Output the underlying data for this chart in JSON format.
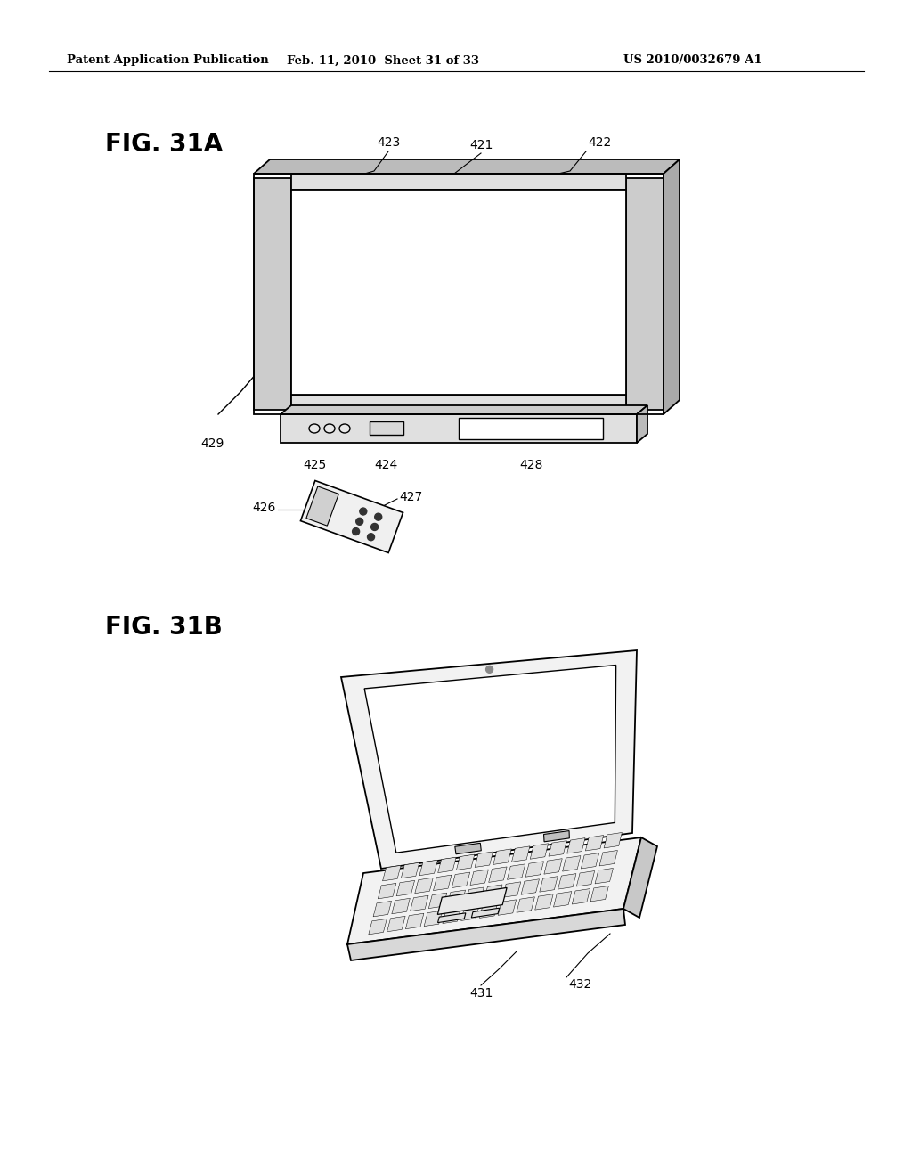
{
  "bg_color": "#ffffff",
  "header_left": "Patent Application Publication",
  "header_mid": "Feb. 11, 2010  Sheet 31 of 33",
  "header_right": "US 2010/0032679 A1",
  "fig_a_label": "FIG. 31A",
  "fig_b_label": "FIG. 31B"
}
